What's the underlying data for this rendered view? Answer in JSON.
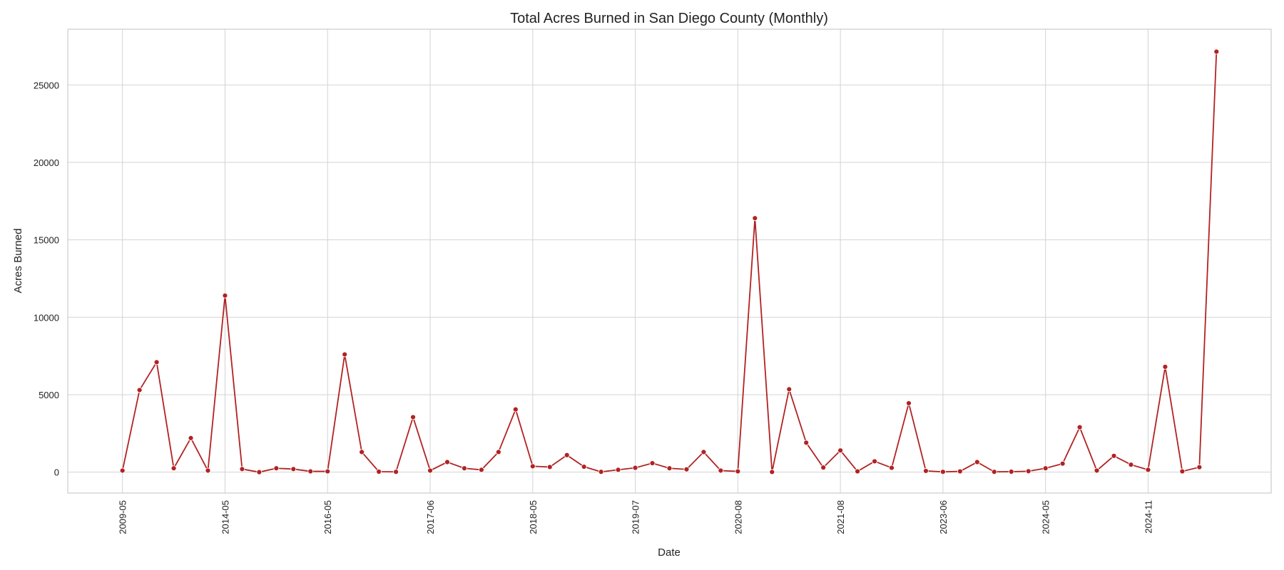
{
  "chart_data": {
    "type": "line",
    "title": "Total Acres Burned in San Diego County (Monthly)",
    "x_label": "Date",
    "y_label": "Acres Burned",
    "categories": [
      "2009-05",
      null,
      null,
      null,
      null,
      null,
      "2014-05",
      null,
      null,
      null,
      null,
      null,
      "2016-05",
      null,
      null,
      null,
      null,
      null,
      "2017-06",
      null,
      null,
      null,
      null,
      null,
      "2018-05",
      null,
      null,
      null,
      null,
      null,
      "2019-07",
      null,
      null,
      null,
      null,
      null,
      "2020-08",
      null,
      null,
      null,
      null,
      null,
      "2021-08",
      null,
      null,
      null,
      null,
      null,
      "2023-06",
      null,
      null,
      null,
      null,
      null,
      "2024-05",
      null,
      null,
      null,
      null,
      null,
      "2024-11",
      null,
      null,
      null,
      null
    ],
    "series": [
      {
        "name": "Acres Burned",
        "color": "#b22222",
        "values": [
          100,
          5300,
          7100,
          250,
          2200,
          100,
          11400,
          200,
          0,
          250,
          200,
          50,
          50,
          7600,
          1300,
          30,
          20,
          3550,
          100,
          650,
          250,
          150,
          1300,
          4050,
          380,
          330,
          1100,
          350,
          20,
          150,
          280,
          580,
          250,
          180,
          1300,
          100,
          50,
          16400,
          10,
          5350,
          1900,
          300,
          1400,
          50,
          700,
          280,
          4450,
          80,
          20,
          50,
          650,
          20,
          30,
          60,
          250,
          550,
          2900,
          100,
          1050,
          480,
          150,
          6800,
          50,
          320,
          27150
        ]
      }
    ],
    "ylim": [
      -1350,
      28600
    ],
    "yticks": [
      0,
      5000,
      10000,
      15000,
      20000,
      25000
    ],
    "grid": true
  }
}
